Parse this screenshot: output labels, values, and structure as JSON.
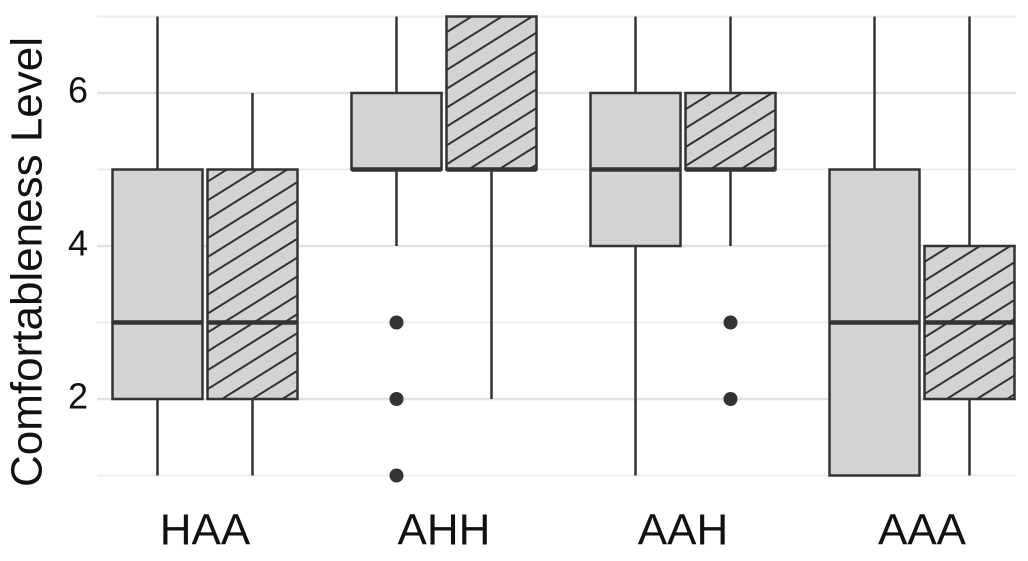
{
  "chart_data": {
    "type": "box",
    "ylabel": "Comfortableness Level",
    "categories": [
      "HAA",
      "AHH",
      "AAH",
      "AAA"
    ],
    "ylim": [
      1,
      7
    ],
    "yticks": [
      2,
      4,
      6
    ],
    "minor_yticks": [
      1,
      3,
      5,
      7
    ],
    "grid": true,
    "series": [
      {
        "color": "#d3d3d3",
        "pattern": "none",
        "boxes": [
          {
            "min": 1,
            "q1": 2,
            "median": 3,
            "q3": 5,
            "max": 7,
            "outliers": []
          },
          {
            "min": 4,
            "q1": 5,
            "median": 5,
            "q3": 6,
            "max": 7,
            "outliers": [
              3,
              2,
              1
            ]
          },
          {
            "min": 1,
            "q1": 4,
            "median": 5,
            "q3": 6,
            "max": 7,
            "outliers": []
          },
          {
            "min": 1,
            "q1": 1,
            "median": 3,
            "q3": 5,
            "max": 7,
            "outliers": []
          }
        ]
      },
      {
        "color": "#d3d3d3",
        "pattern": "hatch",
        "boxes": [
          {
            "min": 1,
            "q1": 2,
            "median": 3,
            "q3": 5,
            "max": 6,
            "outliers": []
          },
          {
            "min": 2,
            "q1": 5,
            "median": 5,
            "q3": 7,
            "max": 7,
            "outliers": []
          },
          {
            "min": 4,
            "q1": 5,
            "median": 5,
            "q3": 6,
            "max": 7,
            "outliers": [
              3,
              2
            ]
          },
          {
            "min": 1,
            "q1": 2,
            "median": 3,
            "q3": 4,
            "max": 7,
            "outliers": []
          }
        ]
      }
    ]
  }
}
